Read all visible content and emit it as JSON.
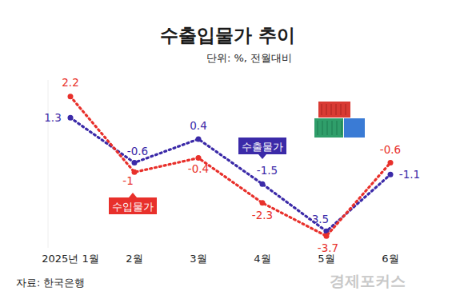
{
  "chart_data": {
    "type": "line",
    "title": "수출입물가 추이",
    "subtitle": "단위: %, 전월대비",
    "source": "자료: 한국은행",
    "watermark": "경제포커스",
    "categories": [
      "2025년 1월",
      "2월",
      "3월",
      "4월",
      "5월",
      "6월"
    ],
    "series": [
      {
        "name": "수출물가",
        "color": "#3b2aa8",
        "values": [
          1.3,
          -0.6,
          0.4,
          -1.5,
          -3.5,
          -1.1
        ],
        "marker": "circle",
        "line_style": "dotted"
      },
      {
        "name": "수입물가",
        "color": "#e8302b",
        "values": [
          2.2,
          -1.0,
          -0.4,
          -2.3,
          -3.7,
          -0.6
        ],
        "marker": "circle",
        "line_style": "dotted"
      }
    ],
    "ylim": [
      -4.2,
      2.9
    ],
    "data_labels": true,
    "tick_labels": "x",
    "grid": false
  }
}
